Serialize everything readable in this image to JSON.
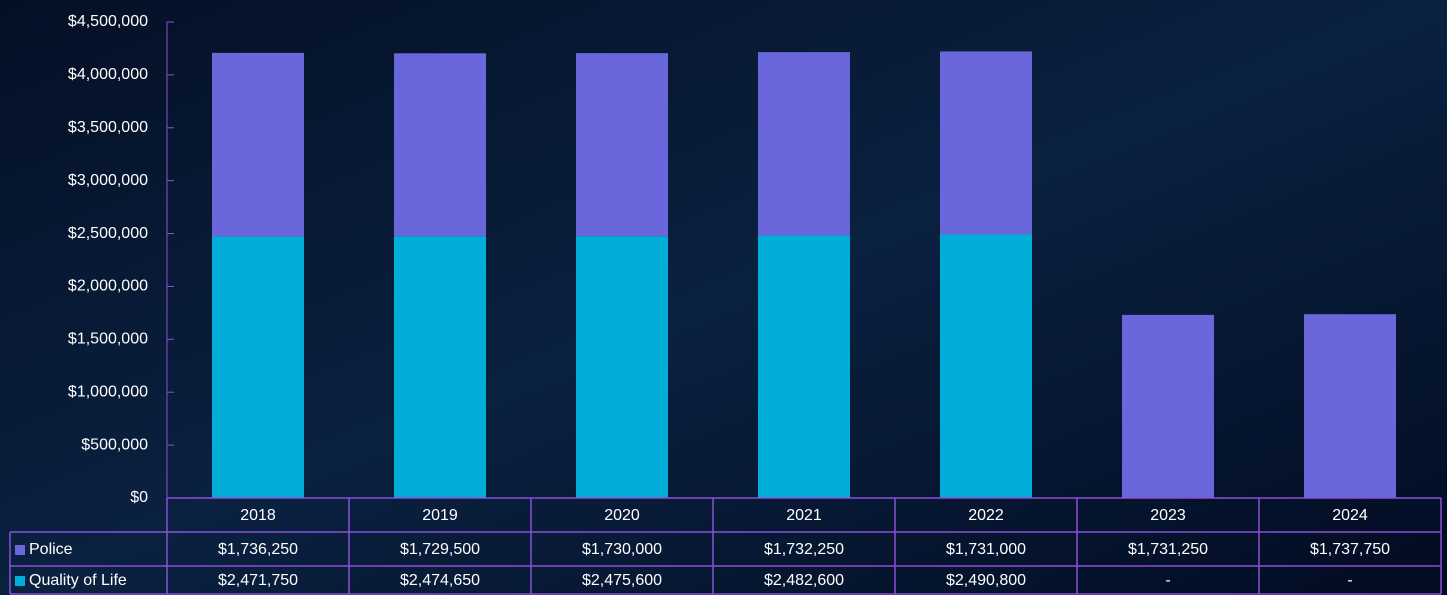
{
  "chart_data": {
    "type": "bar",
    "stacked": true,
    "categories": [
      "2018",
      "2019",
      "2020",
      "2021",
      "2022",
      "2023",
      "2024"
    ],
    "series": [
      {
        "name": "Police",
        "color": "#6a67dd",
        "values": [
          1736250,
          1729500,
          1730000,
          1732250,
          1731000,
          1731250,
          1737750
        ],
        "value_labels": [
          "$1,736,250",
          "$1,729,500",
          "$1,730,000",
          "$1,732,250",
          "$1,731,000",
          "$1,731,250",
          "$1,737,750"
        ]
      },
      {
        "name": "Quality of Life",
        "color": "#00aed8",
        "values": [
          2471750,
          2474650,
          2475600,
          2482600,
          2490800,
          null,
          null
        ],
        "value_labels": [
          "$2,471,750",
          "$2,474,650",
          "$2,475,600",
          "$2,482,600",
          "$2,490,800",
          "-",
          "-"
        ]
      }
    ],
    "ylim": [
      0,
      4500000
    ],
    "yticks": [
      {
        "value": 0,
        "label": "$0"
      },
      {
        "value": 500000,
        "label": "$500,000"
      },
      {
        "value": 1000000,
        "label": "$1,000,000"
      },
      {
        "value": 1500000,
        "label": "$1,500,000"
      },
      {
        "value": 2000000,
        "label": "$2,000,000"
      },
      {
        "value": 2500000,
        "label": "$2,500,000"
      },
      {
        "value": 3000000,
        "label": "$3,000,000"
      },
      {
        "value": 3500000,
        "label": "$3,500,000"
      },
      {
        "value": 4000000,
        "label": "$4,000,000"
      },
      {
        "value": 4500000,
        "label": "$4,500,000"
      }
    ],
    "grid": false
  }
}
